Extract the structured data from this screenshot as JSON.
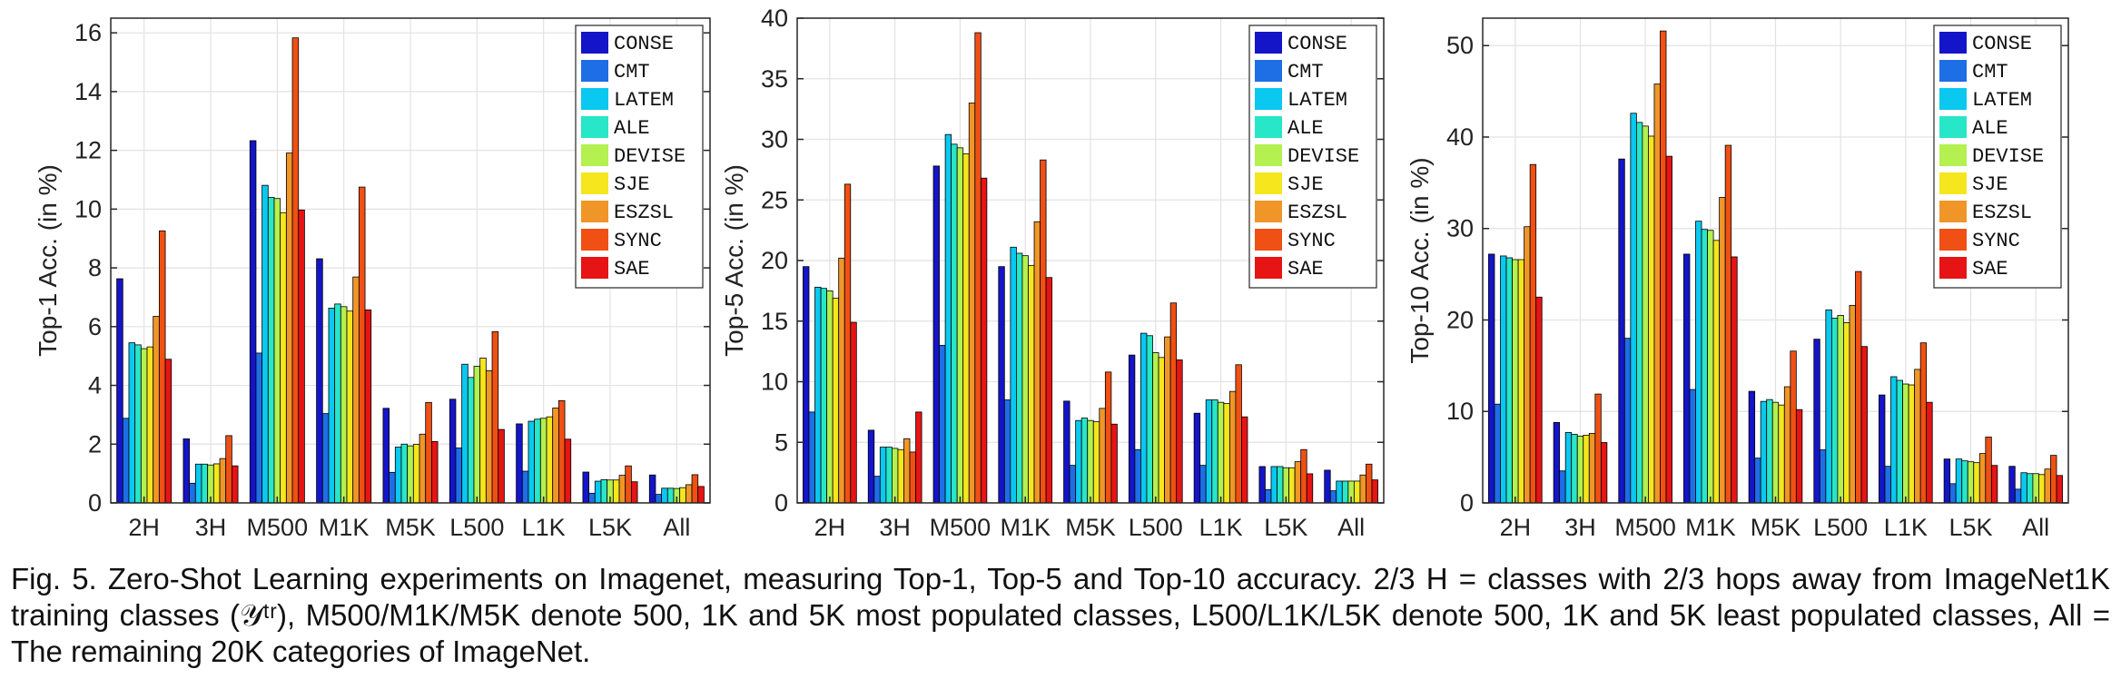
{
  "chart_data": [
    {
      "type": "bar",
      "ylabel": "Top-1 Acc. (in %)",
      "ylim": [
        0,
        16.5
      ],
      "yticks": [
        0,
        2,
        4,
        6,
        8,
        10,
        12,
        14,
        16
      ],
      "categories": [
        "2H",
        "3H",
        "M500",
        "M1K",
        "M5K",
        "L500",
        "L1K",
        "L5K",
        "All"
      ],
      "grid": true,
      "legend_position": "top-right",
      "series": [
        {
          "name": "CONSE",
          "color": "#1414c8",
          "values": [
            7.63,
            2.18,
            12.33,
            8.31,
            3.22,
            3.53,
            2.69,
            1.05,
            0.95
          ]
        },
        {
          "name": "CMT",
          "color": "#1e6ee6",
          "values": [
            2.88,
            0.67,
            5.1,
            3.04,
            1.04,
            1.87,
            1.08,
            0.33,
            0.29
          ]
        },
        {
          "name": "LATEM",
          "color": "#0ac8f0",
          "values": [
            5.45,
            1.32,
            10.81,
            6.63,
            1.9,
            4.72,
            2.78,
            0.74,
            0.5
          ]
        },
        {
          "name": "ALE",
          "color": "#28e6c8",
          "values": [
            5.38,
            1.32,
            10.4,
            6.77,
            2.0,
            4.27,
            2.85,
            0.79,
            0.5
          ]
        },
        {
          "name": "DEVISE",
          "color": "#b4f050",
          "values": [
            5.25,
            1.29,
            10.36,
            6.68,
            1.94,
            4.65,
            2.88,
            0.78,
            0.49
          ]
        },
        {
          "name": "SJE",
          "color": "#f5e61e",
          "values": [
            5.31,
            1.33,
            9.88,
            6.53,
            1.99,
            4.93,
            2.93,
            0.78,
            0.52
          ]
        },
        {
          "name": "ESZSL",
          "color": "#f09628",
          "values": [
            6.35,
            1.51,
            11.91,
            7.69,
            2.34,
            4.5,
            3.23,
            0.94,
            0.62
          ]
        },
        {
          "name": "SYNC",
          "color": "#f05014",
          "values": [
            9.26,
            2.29,
            15.83,
            10.75,
            3.42,
            5.83,
            3.48,
            1.26,
            0.96
          ]
        },
        {
          "name": "SAE",
          "color": "#e61414",
          "values": [
            4.89,
            1.26,
            9.97,
            6.57,
            2.09,
            2.5,
            2.17,
            0.72,
            0.56
          ]
        }
      ]
    },
    {
      "type": "bar",
      "ylabel": "Top-5 Acc. (in %)",
      "ylim": [
        0,
        40
      ],
      "yticks": [
        0,
        5,
        10,
        15,
        20,
        25,
        30,
        35,
        40
      ],
      "categories": [
        "2H",
        "3H",
        "M500",
        "M1K",
        "M5K",
        "L500",
        "L1K",
        "L5K",
        "All"
      ],
      "grid": true,
      "legend_position": "top-right",
      "series": [
        {
          "name": "CONSE",
          "color": "#1414c8",
          "values": [
            19.5,
            6.0,
            27.8,
            19.5,
            8.4,
            12.2,
            7.4,
            3.0,
            2.7
          ]
        },
        {
          "name": "CMT",
          "color": "#1e6ee6",
          "values": [
            7.5,
            2.2,
            13.0,
            8.5,
            3.1,
            4.4,
            3.1,
            1.1,
            1.0
          ]
        },
        {
          "name": "LATEM",
          "color": "#0ac8f0",
          "values": [
            17.8,
            4.6,
            30.4,
            21.1,
            6.8,
            14.0,
            8.5,
            3.0,
            1.8
          ]
        },
        {
          "name": "ALE",
          "color": "#28e6c8",
          "values": [
            17.7,
            4.6,
            29.6,
            20.6,
            7.0,
            13.8,
            8.5,
            3.0,
            1.8
          ]
        },
        {
          "name": "DEVISE",
          "color": "#b4f050",
          "values": [
            17.5,
            4.5,
            29.3,
            20.4,
            6.8,
            12.4,
            8.3,
            2.9,
            1.8
          ]
        },
        {
          "name": "SJE",
          "color": "#f5e61e",
          "values": [
            16.9,
            4.4,
            28.8,
            19.6,
            6.7,
            12.0,
            8.2,
            2.9,
            1.8
          ]
        },
        {
          "name": "ESZSL",
          "color": "#f09628",
          "values": [
            20.2,
            5.3,
            33.0,
            23.2,
            7.8,
            13.7,
            9.2,
            3.4,
            2.3
          ]
        },
        {
          "name": "SYNC",
          "color": "#f05014",
          "values": [
            26.3,
            4.2,
            38.8,
            28.3,
            10.8,
            16.5,
            11.4,
            4.4,
            3.2
          ]
        },
        {
          "name": "SAE",
          "color": "#e61414",
          "values": [
            14.9,
            7.5,
            26.8,
            18.6,
            6.5,
            11.8,
            7.1,
            2.4,
            1.9
          ]
        }
      ]
    },
    {
      "type": "bar",
      "ylabel": "Top-10 Acc. (in %)",
      "ylim": [
        0,
        53
      ],
      "yticks": [
        0,
        10,
        20,
        30,
        40,
        50
      ],
      "categories": [
        "2H",
        "3H",
        "M500",
        "M1K",
        "M5K",
        "L500",
        "L1K",
        "L5K",
        "All"
      ],
      "grid": true,
      "legend_position": "top-right",
      "series": [
        {
          "name": "CONSE",
          "color": "#1414c8",
          "values": [
            27.2,
            8.8,
            37.6,
            27.2,
            12.2,
            17.9,
            11.8,
            4.8,
            4.0
          ]
        },
        {
          "name": "CMT",
          "color": "#1e6ee6",
          "values": [
            10.8,
            3.5,
            18.0,
            12.4,
            4.9,
            5.8,
            4.0,
            2.1,
            1.5
          ]
        },
        {
          "name": "LATEM",
          "color": "#0ac8f0",
          "values": [
            27.0,
            7.7,
            42.6,
            30.8,
            11.1,
            21.1,
            13.8,
            4.8,
            3.3
          ]
        },
        {
          "name": "ALE",
          "color": "#28e6c8",
          "values": [
            26.8,
            7.5,
            41.6,
            29.9,
            11.3,
            20.2,
            13.4,
            4.6,
            3.2
          ]
        },
        {
          "name": "DEVISE",
          "color": "#b4f050",
          "values": [
            26.6,
            7.3,
            41.2,
            29.8,
            11.0,
            20.5,
            13.0,
            4.5,
            3.2
          ]
        },
        {
          "name": "SJE",
          "color": "#f5e61e",
          "values": [
            26.6,
            7.4,
            40.1,
            28.7,
            10.7,
            19.7,
            12.9,
            4.4,
            3.1
          ]
        },
        {
          "name": "ESZSL",
          "color": "#f09628",
          "values": [
            30.2,
            7.6,
            45.8,
            33.4,
            12.7,
            21.6,
            14.6,
            5.4,
            3.7
          ]
        },
        {
          "name": "SYNC",
          "color": "#f05014",
          "values": [
            37.0,
            11.9,
            51.6,
            39.1,
            16.6,
            25.3,
            17.5,
            7.2,
            5.2
          ]
        },
        {
          "name": "SAE",
          "color": "#e61414",
          "values": [
            22.5,
            6.6,
            37.9,
            26.9,
            10.2,
            17.1,
            11.0,
            4.1,
            3.0
          ]
        }
      ]
    }
  ],
  "caption": "Fig. 5. Zero-Shot Learning experiments on Imagenet, measuring Top-1, Top-5 and Top-10 accuracy. 2/3 H = classes with 2/3 hops away from ImageNet1K training classes (𝒴ᵗʳ), M500/M1K/M5K denote 500, 1K and 5K most populated classes, L500/L1K/L5K denote 500, 1K and 5K least populated classes, All = The remaining 20K categories of ImageNet."
}
